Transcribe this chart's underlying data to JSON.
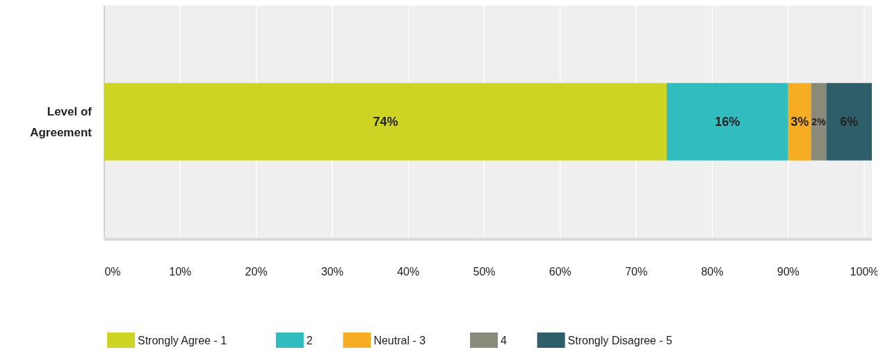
{
  "chart_data": {
    "type": "bar",
    "orientation": "horizontal",
    "stacked": true,
    "categories": [
      "Level of Agreement"
    ],
    "series": [
      {
        "name": "Strongly Agree - 1",
        "color": "#cdd424",
        "values": [
          74
        ],
        "value_labels": [
          "74%"
        ]
      },
      {
        "name": "2",
        "color": "#31bcc0",
        "values": [
          16
        ],
        "value_labels": [
          "16%"
        ]
      },
      {
        "name": "Neutral - 3",
        "color": "#f7ad23",
        "values": [
          3
        ],
        "value_labels": [
          "3%"
        ]
      },
      {
        "name": "4",
        "color": "#8a8a7a",
        "values": [
          2
        ],
        "value_labels": [
          "2%"
        ]
      },
      {
        "name": "Strongly Disagree - 5",
        "color": "#2e5e6a",
        "values": [
          6
        ],
        "value_labels": [
          "6%"
        ]
      }
    ],
    "xlim": [
      0,
      101
    ],
    "xticks": [
      {
        "value": 0,
        "label": "0%"
      },
      {
        "value": 10,
        "label": "10%"
      },
      {
        "value": 20,
        "label": "20%"
      },
      {
        "value": 30,
        "label": "30%"
      },
      {
        "value": 40,
        "label": "40%"
      },
      {
        "value": 50,
        "label": "50%"
      },
      {
        "value": 60,
        "label": "60%"
      },
      {
        "value": 70,
        "label": "70%"
      },
      {
        "value": 80,
        "label": "80%"
      },
      {
        "value": 90,
        "label": "90%"
      },
      {
        "value": 100,
        "label": "100%"
      }
    ],
    "grid": "x",
    "legend": "bottom"
  }
}
